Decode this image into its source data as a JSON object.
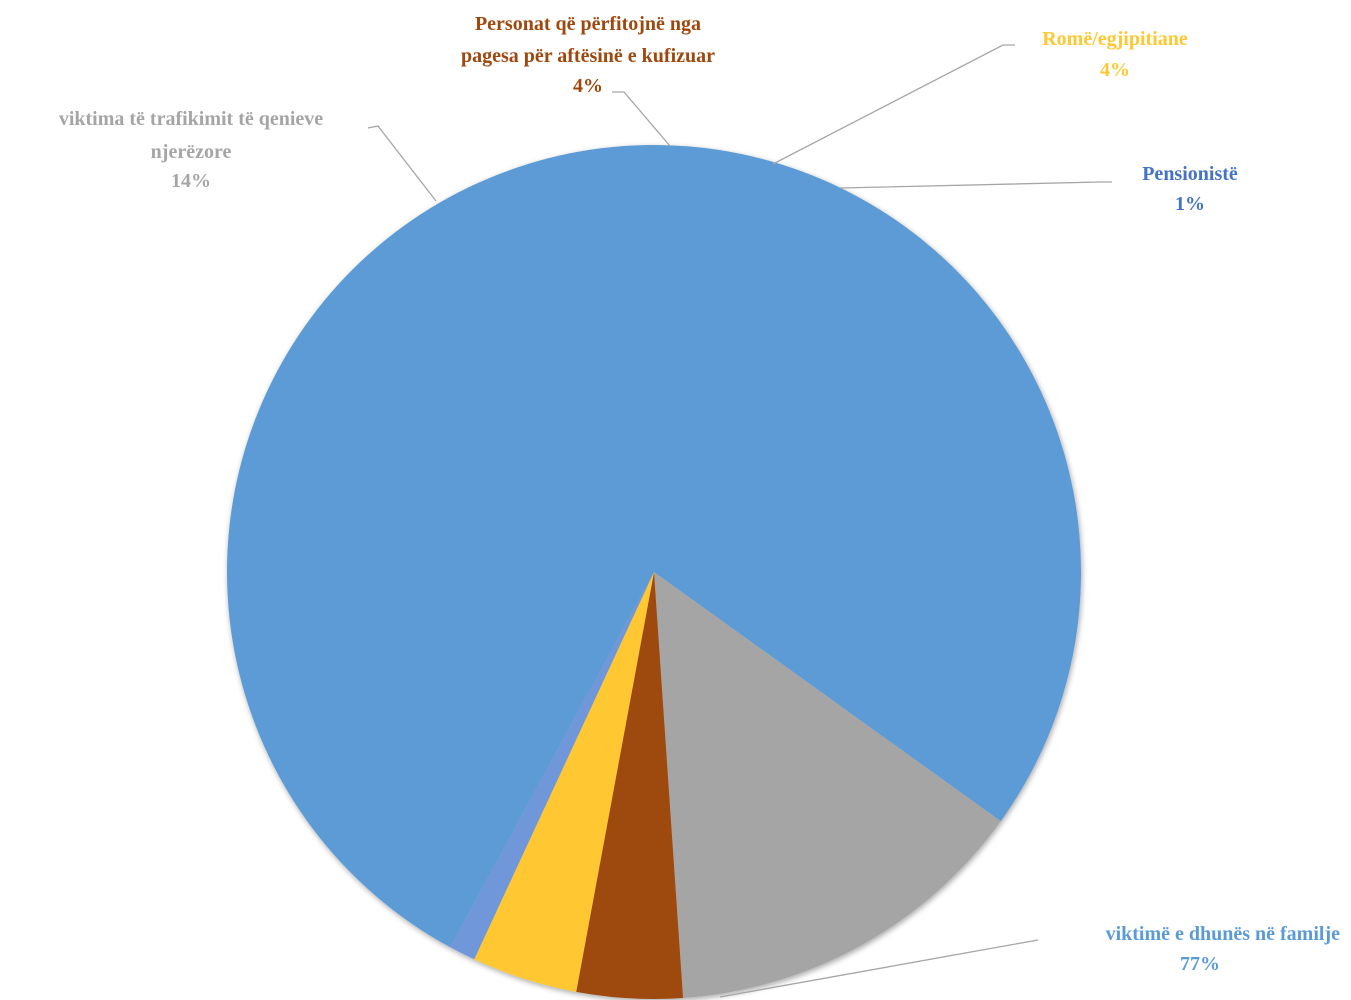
{
  "chart_data": {
    "type": "pie",
    "title": "",
    "slices": [
      {
        "label": "viktimë e dhunës në familje",
        "label_lines": [
          "viktimë e dhunës në familje"
        ],
        "value": 77,
        "display": "77%",
        "color": "#5b9bd5"
      },
      {
        "label": "viktima të trafikimit të qenieve njerëzore",
        "label_lines": [
          "viktima të trafikimit të qenieve",
          "njerëzore"
        ],
        "value": 14,
        "display": "14%",
        "color": "#a5a5a5"
      },
      {
        "label": "Personat që përfitojnë nga pagesa për aftësinë e kufizuar",
        "label_lines": [
          "Personat që përfitojnë nga",
          "pagesa për aftësinë e kufizuar"
        ],
        "value": 4,
        "display": "4%",
        "color": "#9e480e"
      },
      {
        "label": "Romë/egjipitiane",
        "label_lines": [
          "Romë/egjipitiane"
        ],
        "value": 4,
        "display": "4%",
        "color": "#ffc832"
      },
      {
        "label": "Pensionistë",
        "label_lines": [
          "Pensionistë"
        ],
        "value": 1,
        "display": "1%",
        "color": "#6f97d9"
      }
    ],
    "label_text_colors": [
      "#5b9bd5",
      "#a5a5a5",
      "#9e480e",
      "#ffc832",
      "#4472c4"
    ]
  }
}
